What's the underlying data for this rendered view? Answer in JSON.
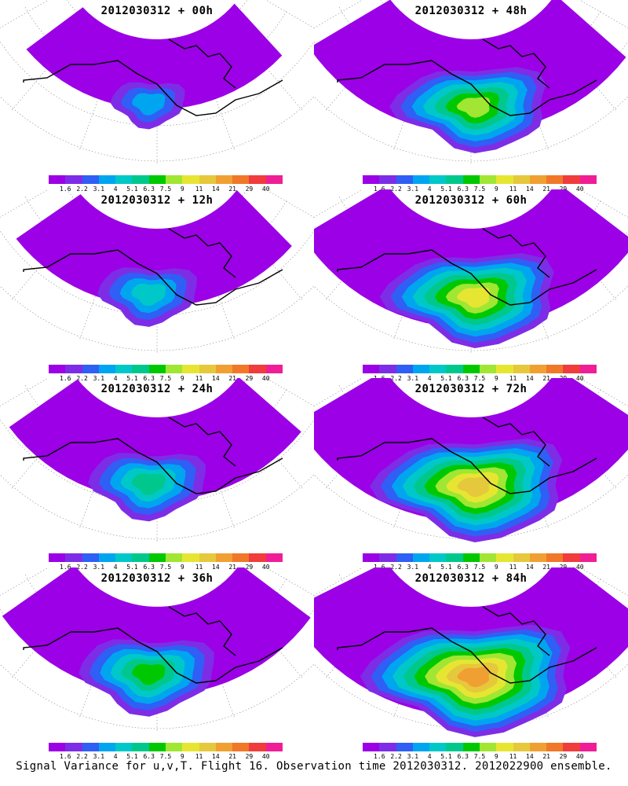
{
  "chart_data": {
    "type": "heatmap",
    "footer": "Signal Variance for u,v,T. Flight 16. Observation time 2012030312. 2012022900 ensemble.",
    "colorbar": {
      "colors": [
        "#9b00e6",
        "#7d2de6",
        "#2f5ff5",
        "#00a5f0",
        "#00c8c8",
        "#00c88c",
        "#00c800",
        "#a0e632",
        "#e6e632",
        "#e6c83c",
        "#f0a032",
        "#f07828",
        "#f03c3c",
        "#f01e96"
      ],
      "labels": [
        "1.6",
        "2.2",
        "3.1",
        "4",
        "5.1",
        "6.3",
        "7.5",
        "9",
        "11",
        "14",
        "21",
        "29",
        "40"
      ]
    },
    "panels": [
      {
        "title": "2012030312 + 00h",
        "intensity": 0.1
      },
      {
        "title": "2012030312 + 48h",
        "intensity": 0.55
      },
      {
        "title": "2012030312 + 12h",
        "intensity": 0.25
      },
      {
        "title": "2012030312 + 60h",
        "intensity": 0.65
      },
      {
        "title": "2012030312 + 24h",
        "intensity": 0.35
      },
      {
        "title": "2012030312 + 72h",
        "intensity": 0.75
      },
      {
        "title": "2012030312 + 36h",
        "intensity": 0.45
      },
      {
        "title": "2012030312 + 84h",
        "intensity": 0.85
      }
    ]
  }
}
